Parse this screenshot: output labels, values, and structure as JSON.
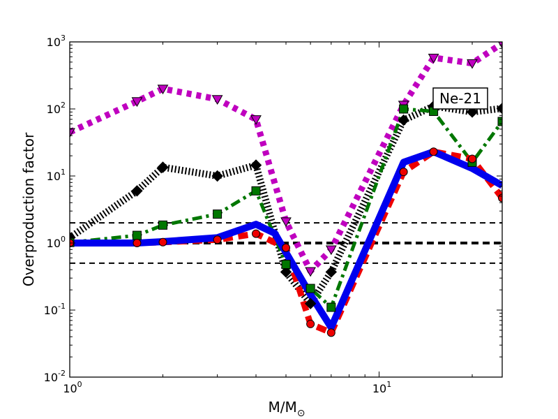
{
  "chart_data": {
    "type": "line",
    "title": "",
    "xlabel": "M/M",
    "xlabel_sub": "⊙",
    "ylabel": "Overproduction factor",
    "xscale": "log",
    "yscale": "log",
    "xlim": [
      1,
      25
    ],
    "ylim": [
      0.01,
      1000
    ],
    "x_ticks": [
      {
        "value": 1,
        "base": "10",
        "exp": "0"
      },
      {
        "value": 10,
        "base": "10",
        "exp": "1"
      }
    ],
    "y_ticks": [
      {
        "value": 0.01,
        "base": "10",
        "exp": "-2"
      },
      {
        "value": 0.1,
        "base": "10",
        "exp": "-1"
      },
      {
        "value": 1,
        "base": "10",
        "exp": "0"
      },
      {
        "value": 10,
        "base": "10",
        "exp": "1"
      },
      {
        "value": 100,
        "base": "10",
        "exp": "2"
      },
      {
        "value": 1000,
        "base": "10",
        "exp": "3"
      }
    ],
    "annotation": "Ne-21",
    "reference_lines": [
      {
        "y": 2,
        "style": "dashed",
        "color": "#000000",
        "width": 2
      },
      {
        "y": 1,
        "style": "dashed",
        "color": "#000000",
        "width": 4
      },
      {
        "y": 0.5,
        "style": "dashed",
        "color": "#000000",
        "width": 2
      }
    ],
    "series": [
      {
        "name": "magenta-triangles",
        "color": "#bf00bf",
        "marker": "triangle-down",
        "linestyle": "dotted",
        "x": [
          1,
          1.65,
          2,
          3,
          4,
          5,
          6,
          7,
          12,
          15,
          20,
          25
        ],
        "y": [
          45,
          130,
          200,
          140,
          70,
          2.1,
          0.38,
          0.8,
          115,
          580,
          480,
          950
        ]
      },
      {
        "name": "black-diamonds",
        "color": "#000000",
        "marker": "diamond",
        "linestyle": "dotted-hatched",
        "x": [
          1,
          1.65,
          2,
          3,
          4,
          5,
          6,
          7,
          12,
          15,
          20,
          25
        ],
        "y": [
          1.2,
          6,
          13.5,
          10,
          14.5,
          0.37,
          0.125,
          0.37,
          68,
          110,
          90,
          102
        ]
      },
      {
        "name": "green-squares",
        "color": "#007700",
        "marker": "square",
        "linestyle": "dashdot",
        "x": [
          1,
          1.65,
          2,
          3,
          4,
          5,
          6,
          7,
          12,
          15,
          20,
          25
        ],
        "y": [
          1.02,
          1.3,
          1.85,
          2.7,
          6,
          0.48,
          0.21,
          0.11,
          100,
          92,
          16,
          65
        ]
      },
      {
        "name": "red-circles",
        "color": "#ee0000",
        "marker": "circle",
        "linestyle": "dashed",
        "x": [
          1,
          1.65,
          2,
          3,
          4,
          5,
          6,
          7,
          12,
          15,
          20,
          25
        ],
        "y": [
          1.0,
          1.0,
          1.03,
          1.12,
          1.38,
          0.85,
          0.062,
          0.046,
          11.5,
          23,
          18,
          4.7
        ]
      },
      {
        "name": "blue-solid",
        "color": "#0000ee",
        "marker": "none",
        "linestyle": "solid",
        "x": [
          1,
          1.65,
          2,
          3,
          4,
          4.6,
          6,
          7,
          12,
          15,
          20,
          25
        ],
        "y": [
          1.0,
          1.0,
          1.05,
          1.2,
          1.9,
          1.4,
          0.17,
          0.055,
          16,
          23,
          13,
          7.2
        ]
      }
    ]
  }
}
